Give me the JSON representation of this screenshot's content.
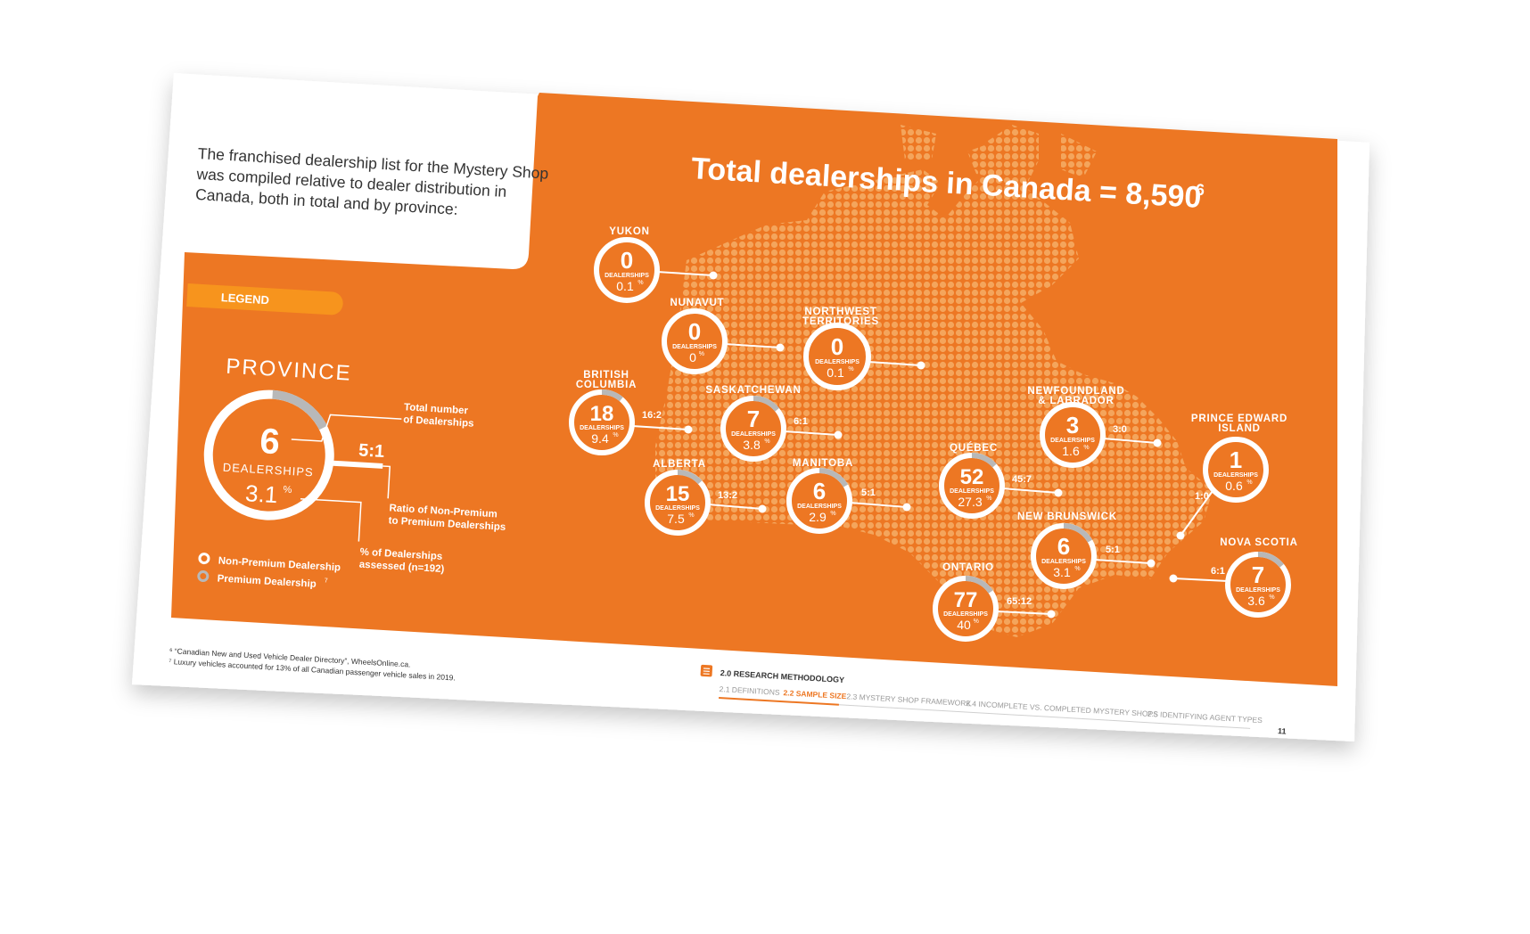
{
  "intro": {
    "line1": "The franchised dealership list for the Mystery Shop",
    "line2": "was compiled relative to dealer distribution in",
    "line3": "Canada, both in total and by province:"
  },
  "title": {
    "main": "Total dealerships in Canada = 8,590",
    "footnote_ref": "6"
  },
  "legend": {
    "tab_label": "LEGEND",
    "heading": "PROVINCE",
    "count": "6",
    "count_label": "DEALERSHIPS",
    "pct": "3.1",
    "pct_sign": "%",
    "ratio": "5:1",
    "note_total_1": "Total number",
    "note_total_2": "of Dealerships",
    "note_ratio_1": "Ratio of Non-Premium",
    "note_ratio_2": "to Premium Dealerships",
    "note_pct_1": "% of Dealerships",
    "note_pct_2": "assessed (n=192)",
    "key_nonpremium": "Non-Premium Dealership",
    "key_premium": "Premium Dealership",
    "key_premium_ref": "7"
  },
  "dealerships_label": "DEALERSHIPS",
  "provinces": [
    {
      "name": [
        "YUKON"
      ],
      "count": "0",
      "pct": "0.1",
      "ratio": "",
      "premium_share": 0
    },
    {
      "name": [
        "NUNAVUT"
      ],
      "count": "0",
      "pct": "0",
      "ratio": "",
      "premium_share": 0
    },
    {
      "name": [
        "NORTHWEST",
        "TERRITORIES"
      ],
      "count": "0",
      "pct": "0.1",
      "ratio": "",
      "premium_share": 0
    },
    {
      "name": [
        "BRITISH",
        "COLUMBIA"
      ],
      "count": "18",
      "pct": "9.4",
      "ratio": "16:2",
      "premium_share": 0.111
    },
    {
      "name": [
        "SASKATCHEWAN"
      ],
      "count": "7",
      "pct": "3.8",
      "ratio": "6:1",
      "premium_share": 0.143
    },
    {
      "name": [
        "ALBERTA"
      ],
      "count": "15",
      "pct": "7.5",
      "ratio": "13:2",
      "premium_share": 0.133
    },
    {
      "name": [
        "MANITOBA"
      ],
      "count": "6",
      "pct": "2.9",
      "ratio": "5:1",
      "premium_share": 0.167
    },
    {
      "name": [
        "NEWFOUNDLAND",
        "& LABRADOR"
      ],
      "count": "3",
      "pct": "1.6",
      "ratio": "3:0",
      "premium_share": 0
    },
    {
      "name": [
        "QUÉBEC"
      ],
      "count": "52",
      "pct": "27.3",
      "ratio": "45:7",
      "premium_share": 0.135
    },
    {
      "name": [
        "PRINCE EDWARD",
        "ISLAND"
      ],
      "count": "1",
      "pct": "0.6",
      "ratio": "1:0",
      "premium_share": 0
    },
    {
      "name": [
        "NEW BRUNSWICK"
      ],
      "count": "6",
      "pct": "3.1",
      "ratio": "5:1",
      "premium_share": 0.167
    },
    {
      "name": [
        "NOVA SCOTIA"
      ],
      "count": "7",
      "pct": "3.6",
      "ratio": "6:1",
      "premium_share": 0.143
    },
    {
      "name": [
        "ONTARIO"
      ],
      "count": "77",
      "pct": "40",
      "ratio": "65:12",
      "premium_share": 0.156
    }
  ],
  "footnotes": {
    "f6": "⁶ “Canadian New and Used Vehicle Dealer Directory”, WheelsOnline.ca.",
    "f7": "⁷ Luxury vehicles accounted for 13% of all Canadian passenger vehicle sales in 2019."
  },
  "nav": {
    "section": "2.0 RESEARCH METHODOLOGY",
    "items": [
      "2.1 DEFINITIONS",
      "2.2 SAMPLE SIZE",
      "2.3 MYSTERY SHOP FRAMEWORK",
      "2.4 INCOMPLETE VS. COMPLETED MYSTERY SHOPS",
      "2.5 IDENTIFYING AGENT TYPES"
    ],
    "active_index": 1
  },
  "page_number": "11",
  "colors": {
    "orange": "#ED7723",
    "orange_light": "#F4A55C",
    "legend_tab": "#F7941D",
    "premium_gray": "#B8B8B8",
    "text_dark": "#333333"
  }
}
